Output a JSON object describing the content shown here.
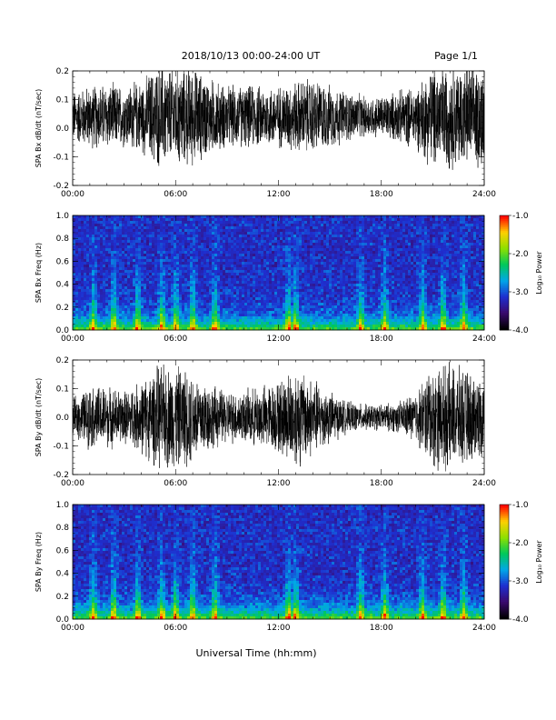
{
  "header": {
    "title": "2018/10/13  00:00-24:00 UT",
    "page": "Page 1/1"
  },
  "x_label": "Universal Time (hh:mm)",
  "colors": {
    "trace": "#000000",
    "colormap": [
      "#000000",
      "#3a0a6e",
      "#1e2fd0",
      "#00a7e8",
      "#00c85a",
      "#8ee000",
      "#ffd000",
      "#ff0000"
    ]
  },
  "chart_data": [
    {
      "type": "line",
      "id": "bx-waveform",
      "ylabel": "SPA Bx dB/dt (nT/sec)",
      "x_ticks": [
        "00:00",
        "06:00",
        "12:00",
        "18:00",
        "24:00"
      ],
      "xlim": [
        0,
        24
      ],
      "y_ticks": [
        "0.2",
        "0.1",
        "0.0",
        "-0.1",
        "-0.2"
      ],
      "ylim": [
        -0.2,
        0.2
      ],
      "series": [
        {
          "x": [
            0,
            1,
            2,
            3,
            4,
            5,
            6,
            7,
            8,
            9,
            10,
            11,
            12,
            13,
            14,
            15,
            16,
            17,
            18,
            19,
            20,
            21,
            22,
            23,
            24
          ],
          "values": [
            0.1,
            0.12,
            0.13,
            0.12,
            0.14,
            0.2,
            0.2,
            0.19,
            0.15,
            0.12,
            0.12,
            0.12,
            0.12,
            0.14,
            0.15,
            0.12,
            0.1,
            0.08,
            0.08,
            0.1,
            0.12,
            0.2,
            0.2,
            0.2,
            0.2
          ]
        }
      ],
      "envelope_center": 0.04
    },
    {
      "type": "heatmap",
      "id": "bx-spectrogram",
      "ylabel": "SPA Bx Freq (Hz)",
      "x_ticks": [
        "00:00",
        "06:00",
        "12:00",
        "18:00",
        "24:00"
      ],
      "xlim": [
        0,
        24
      ],
      "y_ticks": [
        "1.0",
        "0.8",
        "0.6",
        "0.4",
        "0.2",
        "0.0"
      ],
      "ylim": [
        0,
        1.0
      ],
      "colorbar": {
        "label": "Log₁₀ Power",
        "ticks": [
          "-1.0",
          "-2.0",
          "-3.0",
          "-4.0"
        ],
        "range": [
          -4.0,
          -1.0
        ]
      },
      "activity_times_h": [
        1.2,
        2.4,
        3.8,
        5.2,
        6.0,
        7.0,
        8.3,
        12.6,
        13.0,
        16.8,
        18.2,
        20.4,
        21.6,
        22.8
      ]
    },
    {
      "type": "line",
      "id": "by-waveform",
      "ylabel": "SPA By dB/dt (nT/sec)",
      "x_ticks": [
        "00:00",
        "06:00",
        "12:00",
        "18:00",
        "24:00"
      ],
      "xlim": [
        0,
        24
      ],
      "y_ticks": [
        "0.2",
        "0.1",
        "0.0",
        "-0.1",
        "-0.2"
      ],
      "ylim": [
        -0.2,
        0.2
      ],
      "series": [
        {
          "x": [
            0,
            1,
            2,
            3,
            4,
            5,
            6,
            7,
            8,
            9,
            10,
            11,
            12,
            13,
            14,
            15,
            16,
            17,
            18,
            19,
            20,
            21,
            22,
            23,
            24
          ],
          "values": [
            0.07,
            0.12,
            0.12,
            0.1,
            0.14,
            0.2,
            0.2,
            0.18,
            0.13,
            0.1,
            0.1,
            0.12,
            0.14,
            0.2,
            0.15,
            0.1,
            0.06,
            0.05,
            0.05,
            0.06,
            0.1,
            0.2,
            0.2,
            0.18,
            0.15
          ]
        }
      ],
      "envelope_center": 0.0
    },
    {
      "type": "heatmap",
      "id": "by-spectrogram",
      "ylabel": "SPA By Freq (Hz)",
      "x_ticks": [
        "00:00",
        "06:00",
        "12:00",
        "18:00",
        "24:00"
      ],
      "xlim": [
        0,
        24
      ],
      "y_ticks": [
        "1.0",
        "0.8",
        "0.6",
        "0.4",
        "0.2",
        "0.0"
      ],
      "ylim": [
        0,
        1.0
      ],
      "colorbar": {
        "label": "Log₁₀ Power",
        "ticks": [
          "-1.0",
          "-2.0",
          "-3.0",
          "-4.0"
        ],
        "range": [
          -4.0,
          -1.0
        ]
      },
      "activity_times_h": [
        1.2,
        2.4,
        3.8,
        5.2,
        6.0,
        7.0,
        8.3,
        12.6,
        13.0,
        16.8,
        18.2,
        20.4,
        21.6,
        22.8
      ]
    }
  ]
}
